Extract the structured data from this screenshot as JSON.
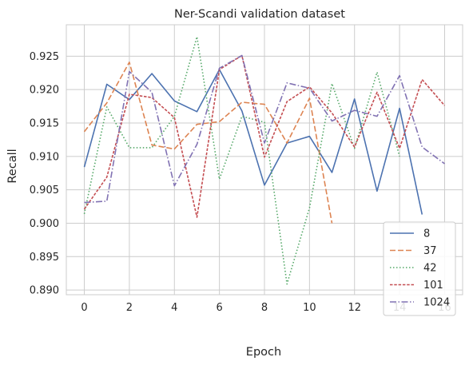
{
  "chart_data": {
    "type": "line",
    "title": "Ner-Scandi validation dataset",
    "xlabel": "Epoch",
    "ylabel": "Recall",
    "xlim": [
      -0.8,
      16.8
    ],
    "ylim": [
      0.8893,
      0.9297
    ],
    "x_ticks": [
      0,
      2,
      4,
      6,
      8,
      10,
      12,
      14,
      16
    ],
    "y_ticks": [
      0.89,
      0.895,
      0.9,
      0.905,
      0.91,
      0.915,
      0.92,
      0.925
    ],
    "x_tick_labels": [
      "0",
      "2",
      "4",
      "6",
      "8",
      "10",
      "12",
      "14",
      "16"
    ],
    "y_tick_labels": [
      "0.890",
      "0.895",
      "0.900",
      "0.905",
      "0.910",
      "0.915",
      "0.920",
      "0.925"
    ],
    "grid": true,
    "legend_position": "lower-right",
    "series": [
      {
        "name": "8",
        "color": "#4c72b0",
        "dash": "solid",
        "x": [
          0,
          1,
          2,
          3,
          4,
          5,
          6,
          7,
          8,
          9,
          10,
          11,
          12,
          13,
          14,
          15
        ],
        "values": [
          0.9084,
          0.9208,
          0.9185,
          0.9224,
          0.9183,
          0.9167,
          0.923,
          0.9168,
          0.9057,
          0.912,
          0.913,
          0.9076,
          0.9186,
          0.9048,
          0.9172,
          0.9013
        ]
      },
      {
        "name": "37",
        "color": "#dd8452",
        "dash": "dashed",
        "x": [
          0,
          1,
          2,
          3,
          4,
          5,
          6,
          7,
          8,
          9,
          10,
          11
        ],
        "values": [
          0.9137,
          0.918,
          0.9241,
          0.9117,
          0.9111,
          0.9148,
          0.9152,
          0.9181,
          0.9178,
          0.912,
          0.9187,
          0.9
        ]
      },
      {
        "name": "42",
        "color": "#55a868",
        "dash": "dotted",
        "x": [
          0,
          1,
          2,
          3,
          4,
          5,
          6,
          7,
          8,
          9,
          10,
          11,
          12,
          13,
          14
        ],
        "values": [
          0.9014,
          0.9174,
          0.9113,
          0.9113,
          0.916,
          0.9279,
          0.9066,
          0.916,
          0.9151,
          0.8909,
          0.9023,
          0.9209,
          0.9112,
          0.9226,
          0.91
        ]
      },
      {
        "name": "101",
        "color": "#c44e52",
        "dash": "dashed-fine",
        "x": [
          0,
          1,
          2,
          3,
          4,
          5,
          6,
          7,
          8,
          9,
          10,
          11,
          12,
          13,
          14,
          15,
          16
        ],
        "values": [
          0.9021,
          0.9069,
          0.9193,
          0.9188,
          0.9158,
          0.9009,
          0.923,
          0.9251,
          0.9099,
          0.9182,
          0.9204,
          0.9165,
          0.9114,
          0.9196,
          0.9112,
          0.9215,
          0.9176
        ]
      },
      {
        "name": "1024",
        "color": "#8172b3",
        "dash": "dashdot",
        "x": [
          0,
          1,
          2,
          3,
          4,
          5,
          6,
          7,
          8,
          9,
          10,
          11,
          12,
          13,
          14,
          15,
          16
        ],
        "values": [
          0.9031,
          0.9033,
          0.9227,
          0.9196,
          0.9056,
          0.9118,
          0.9232,
          0.9251,
          0.912,
          0.921,
          0.9202,
          0.9153,
          0.9169,
          0.916,
          0.9221,
          0.9114,
          0.9089
        ]
      }
    ]
  }
}
